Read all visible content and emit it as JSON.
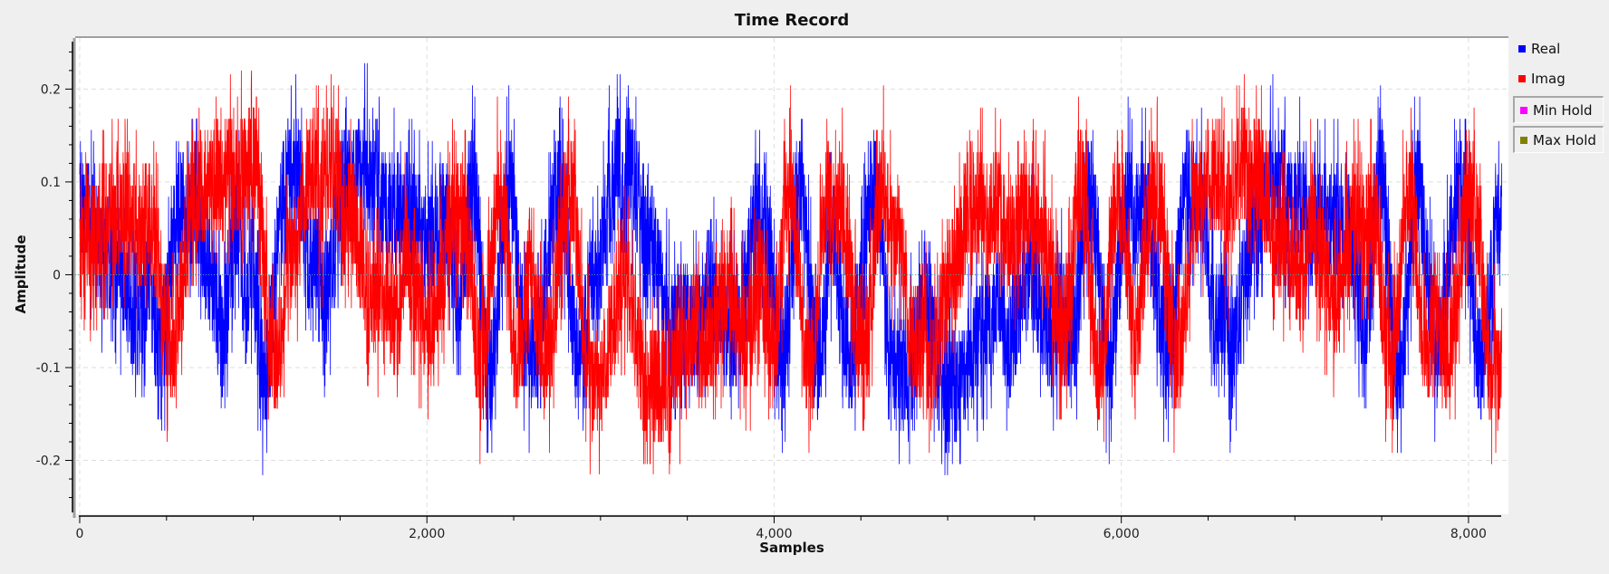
{
  "chart_data": {
    "type": "line",
    "title": "Time Record",
    "xlabel": "Samples",
    "ylabel": "Amplitude",
    "xlim": [
      -26,
      8230
    ],
    "ylim": [
      -0.258,
      0.255
    ],
    "x_ticks": [
      0,
      2000,
      4000,
      6000,
      8000
    ],
    "x_tick_labels": [
      "0",
      "2,000",
      "4,000",
      "6,000",
      "8,000"
    ],
    "y_ticks": [
      -0.2,
      -0.1,
      0,
      0.1,
      0.2
    ],
    "y_tick_labels": [
      "-0.2",
      "-0.1",
      "0",
      "0.1",
      "0.2"
    ],
    "grid": true,
    "legend_position": "right",
    "num_samples": 8192,
    "series": [
      {
        "name": "Real",
        "color": "#0000ff",
        "approx_min": -0.22,
        "approx_max": 0.23,
        "visible": true
      },
      {
        "name": "Imag",
        "color": "#ff0000",
        "approx_min": -0.215,
        "approx_max": 0.22,
        "visible": true
      },
      {
        "name": "Min Hold",
        "color": "#ff00ff",
        "visible": false
      },
      {
        "name": "Max Hold",
        "color": "#808000",
        "visible": false
      }
    ]
  }
}
